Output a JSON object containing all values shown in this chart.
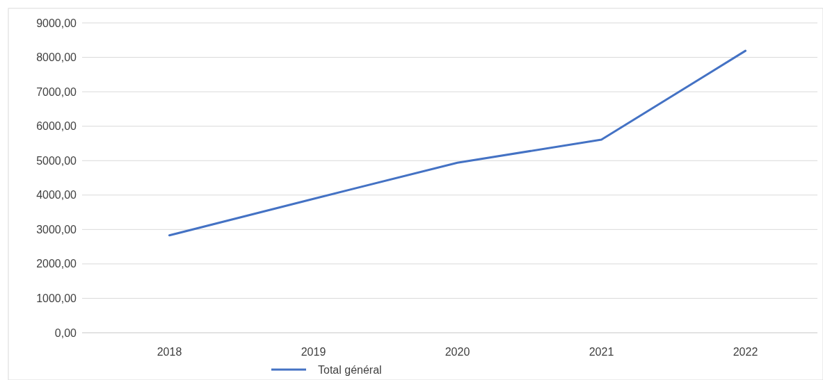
{
  "chart_data": {
    "type": "line",
    "categories": [
      "2018",
      "2019",
      "2020",
      "2021",
      "2022"
    ],
    "series": [
      {
        "name": "Total général",
        "color": "#4472c4",
        "values": [
          2830,
          3890,
          4940,
          5610,
          8190
        ]
      }
    ],
    "ylim": [
      0,
      9000
    ],
    "yticks": [
      {
        "value": 0,
        "label": "0,00"
      },
      {
        "value": 1000,
        "label": "1000,00"
      },
      {
        "value": 2000,
        "label": "2000,00"
      },
      {
        "value": 3000,
        "label": "3000,00"
      },
      {
        "value": 4000,
        "label": "4000,00"
      },
      {
        "value": 5000,
        "label": "5000,00"
      },
      {
        "value": 6000,
        "label": "6000,00"
      },
      {
        "value": 7000,
        "label": "7000,00"
      },
      {
        "value": 8000,
        "label": "8000,00"
      },
      {
        "value": 9000,
        "label": "9000,00"
      }
    ],
    "grid": "y",
    "legend": "bottom",
    "marker": "none",
    "line_style": "solid"
  }
}
